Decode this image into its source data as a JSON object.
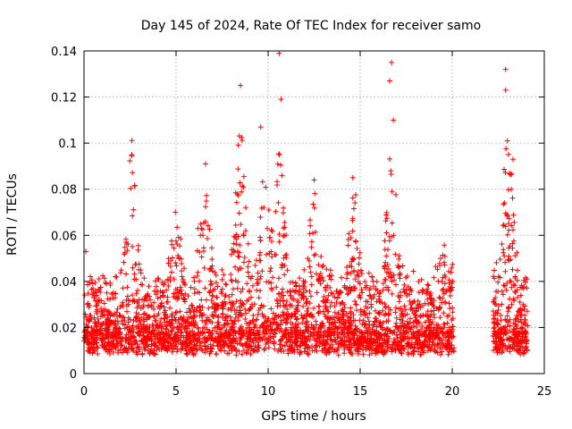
{
  "chart_data": {
    "type": "scatter",
    "title": "Day 145 of 2024, Rate Of TEC Index for receiver samo",
    "xlabel": "GPS time / hours",
    "ylabel": "ROTI / TECUs",
    "xlim": [
      0,
      25
    ],
    "ylim": [
      0,
      0.14
    ],
    "x_ticks": [
      0,
      5,
      10,
      15,
      20,
      25
    ],
    "y_ticks": [
      0,
      0.02,
      0.04,
      0.06,
      0.08,
      0.1,
      0.12,
      0.14
    ],
    "grid": true,
    "marker": "plus",
    "marker_color": "#ff0000",
    "data_gaps_hours": [
      [
        20.1,
        22.2
      ]
    ],
    "notable_points": [
      {
        "x": 0.1,
        "y": 0.053
      },
      {
        "x": 2.6,
        "y": 0.095
      },
      {
        "x": 6.6,
        "y": 0.091
      },
      {
        "x": 8.5,
        "y": 0.125
      },
      {
        "x": 9.6,
        "y": 0.107
      },
      {
        "x": 10.6,
        "y": 0.139
      },
      {
        "x": 10.7,
        "y": 0.119
      },
      {
        "x": 12.5,
        "y": 0.084
      },
      {
        "x": 14.6,
        "y": 0.085
      },
      {
        "x": 16.7,
        "y": 0.135
      },
      {
        "x": 16.6,
        "y": 0.127
      },
      {
        "x": 16.8,
        "y": 0.11
      },
      {
        "x": 22.9,
        "y": 0.132
      },
      {
        "x": 22.9,
        "y": 0.123
      },
      {
        "x": 23.0,
        "y": 0.101
      },
      {
        "x": 23.3,
        "y": 0.093
      }
    ]
  }
}
